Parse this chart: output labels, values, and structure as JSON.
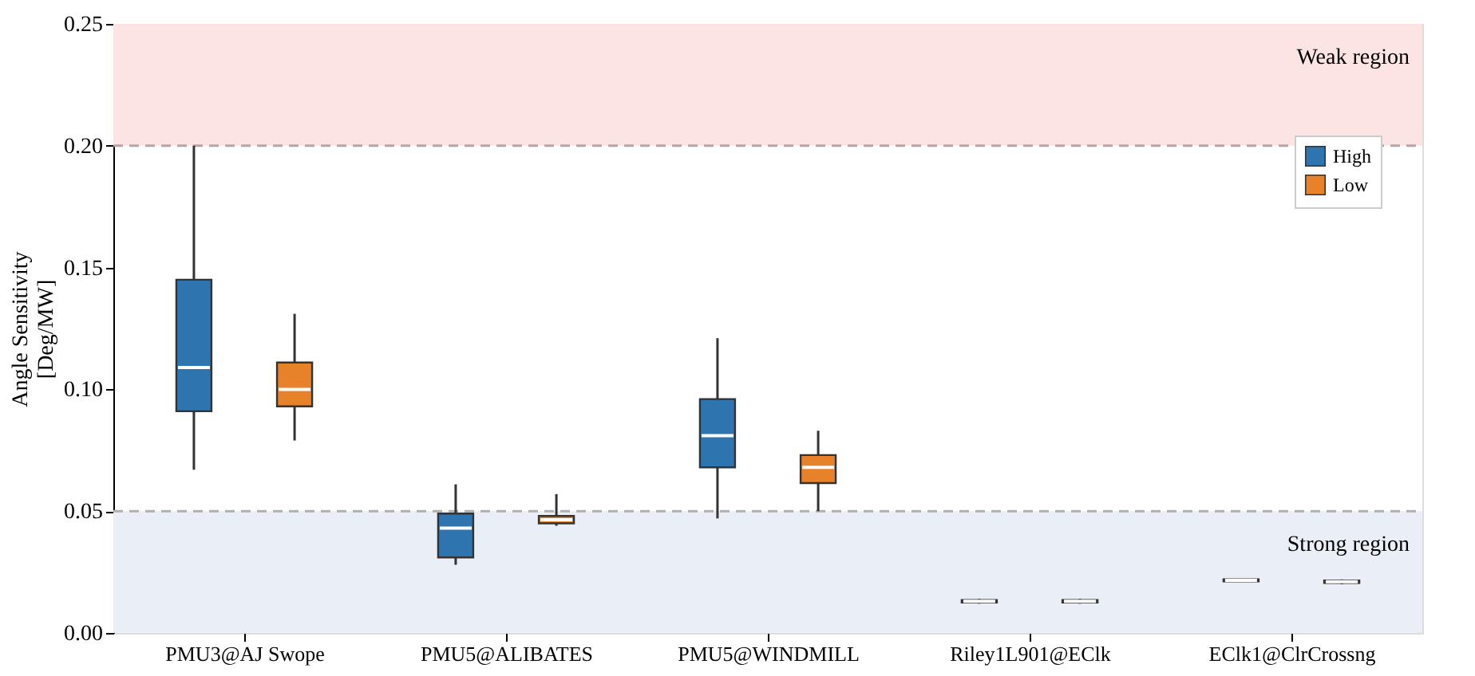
{
  "chart_data": {
    "type": "box",
    "ylabel": "Angle Sensitivity\n[Deg/MW]",
    "categories": [
      "PMU3@AJ Swope",
      "PMU5@ALIBATES",
      "PMU5@WINDMILL",
      "Riley1L901@EClk",
      "EClk1@ClrCrossng"
    ],
    "series": [
      {
        "name": "High",
        "color": "#2e75b0",
        "boxes": [
          {
            "low": 0.067,
            "q1": 0.091,
            "median": 0.109,
            "q3": 0.145,
            "high": 0.2
          },
          {
            "low": 0.028,
            "q1": 0.031,
            "median": 0.043,
            "q3": 0.049,
            "high": 0.061
          },
          {
            "low": 0.047,
            "q1": 0.068,
            "median": 0.081,
            "q3": 0.096,
            "high": 0.121
          },
          {
            "low": 0.012,
            "q1": 0.0125,
            "median": 0.013,
            "q3": 0.0135,
            "high": 0.014
          },
          {
            "low": 0.021,
            "q1": 0.0212,
            "median": 0.0216,
            "q3": 0.022,
            "high": 0.0222
          }
        ]
      },
      {
        "name": "Low",
        "color": "#e8822a",
        "boxes": [
          {
            "low": 0.079,
            "q1": 0.093,
            "median": 0.1,
            "q3": 0.111,
            "high": 0.131
          },
          {
            "low": 0.044,
            "q1": 0.045,
            "median": 0.0465,
            "q3": 0.048,
            "high": 0.057
          },
          {
            "low": 0.05,
            "q1": 0.0615,
            "median": 0.068,
            "q3": 0.073,
            "high": 0.083
          },
          {
            "low": 0.012,
            "q1": 0.0125,
            "median": 0.013,
            "q3": 0.0135,
            "high": 0.014
          },
          {
            "low": 0.02,
            "q1": 0.0205,
            "median": 0.021,
            "q3": 0.0215,
            "high": 0.022
          }
        ]
      }
    ],
    "ylim": [
      0,
      0.25
    ],
    "yticks": [
      {
        "value": 0,
        "label": "0.00"
      },
      {
        "value": 0.05,
        "label": "0.05"
      },
      {
        "value": 0.1,
        "label": "0.10"
      },
      {
        "value": 0.15,
        "label": "0.15"
      },
      {
        "value": 0.2,
        "label": "0.20"
      },
      {
        "value": 0.25,
        "label": "0.25"
      }
    ],
    "bands": [
      {
        "axis": "y",
        "from": 0.2,
        "to": 0.25,
        "label": "Weak region",
        "color": "#fde4e4"
      },
      {
        "axis": "y",
        "from": 0,
        "to": 0.05,
        "label": "Strong region",
        "color": "#eaeff7"
      }
    ],
    "ref_lines": [
      {
        "axis": "y",
        "value": 0.2,
        "color": "#b5a5aa",
        "line_style": "dashed"
      },
      {
        "axis": "y",
        "value": 0.05,
        "color": "#b0b0b0",
        "line_style": "dashed"
      }
    ],
    "grid": false,
    "legend": "top right"
  }
}
